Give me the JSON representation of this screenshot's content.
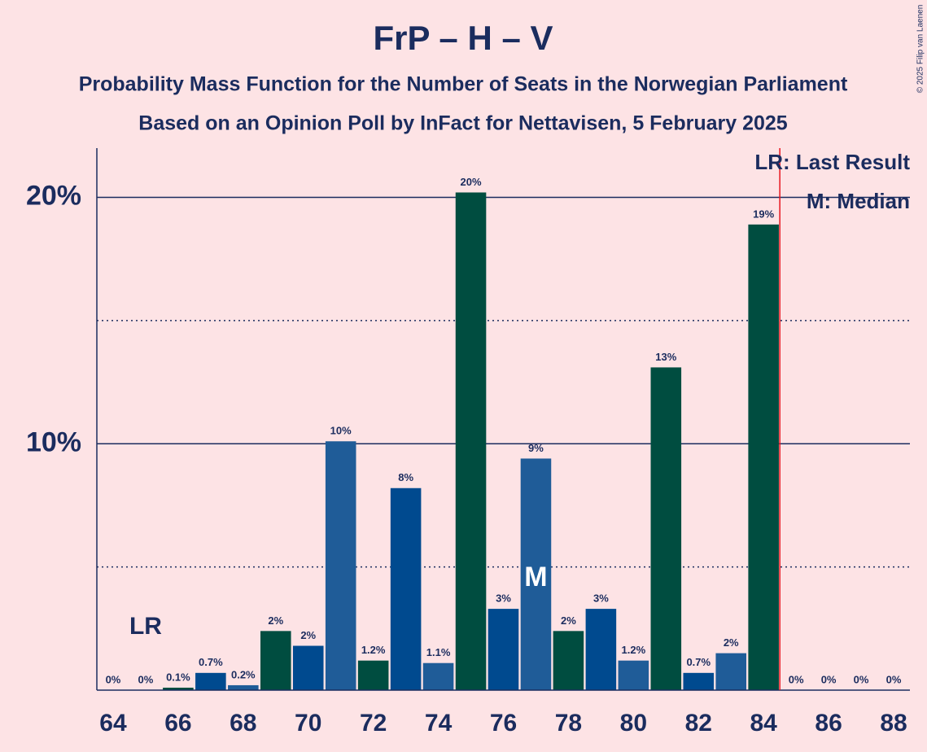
{
  "chart_data": {
    "type": "bar",
    "title": "FrP – H – V",
    "subtitle": [
      "Probability Mass Function for the Number of Seats in the Norwegian Parliament",
      "Based on an Opinion Poll by InFact for Nettavisen, 5 February 2025"
    ],
    "x": [
      64,
      65,
      66,
      67,
      68,
      69,
      70,
      71,
      72,
      73,
      74,
      75,
      76,
      77,
      78,
      79,
      80,
      81,
      82,
      83,
      84,
      85,
      86,
      87,
      88
    ],
    "values": [
      0,
      0,
      0.1,
      0.7,
      0.2,
      2.4,
      1.8,
      10.1,
      1.2,
      8.2,
      1.1,
      20.2,
      3.3,
      9.4,
      2.4,
      3.3,
      1.2,
      13.1,
      0.7,
      1.5,
      18.9,
      0,
      0,
      0,
      0
    ],
    "value_labels": [
      "0%",
      "0%",
      "0.1%",
      "0.7%",
      "0.2%",
      "2%",
      "2%",
      "10%",
      "1.2%",
      "8%",
      "1.1%",
      "20%",
      "3%",
      "9%",
      "2%",
      "3%",
      "1.2%",
      "13%",
      "0.7%",
      "2%",
      "19%",
      "0%",
      "0%",
      "0%",
      "0%"
    ],
    "colors": [
      "#004a8f",
      "#1f5c98",
      "#004d40",
      "#004a8f",
      "#1f5c98",
      "#004d40",
      "#004a8f",
      "#1f5c98",
      "#004d40",
      "#004a8f",
      "#1f5c98",
      "#004d40",
      "#004a8f",
      "#1f5c98",
      "#004d40",
      "#004a8f",
      "#1f5c98",
      "#004d40",
      "#004a8f",
      "#1f5c98",
      "#004d40",
      "#004a8f",
      "#004a8f",
      "#004a8f",
      "#004a8f"
    ],
    "xlim": [
      63.5,
      88.5
    ],
    "xticks": [
      64,
      66,
      68,
      70,
      72,
      74,
      76,
      78,
      80,
      82,
      84,
      86,
      88
    ],
    "ylim": [
      0,
      22
    ],
    "yticks": [
      {
        "value": 10,
        "label": "10%"
      },
      {
        "value": 20,
        "label": "20%"
      }
    ],
    "minor_gridlines": [
      5,
      15
    ],
    "last_result_line": 84.5,
    "last_result_label": {
      "text": "LR",
      "x": 65
    },
    "median_label": {
      "text": "M",
      "x": 77
    },
    "legend": [
      "LR: Last Result",
      "M: Median"
    ],
    "credit": "© 2025 Filip van Laenen"
  }
}
